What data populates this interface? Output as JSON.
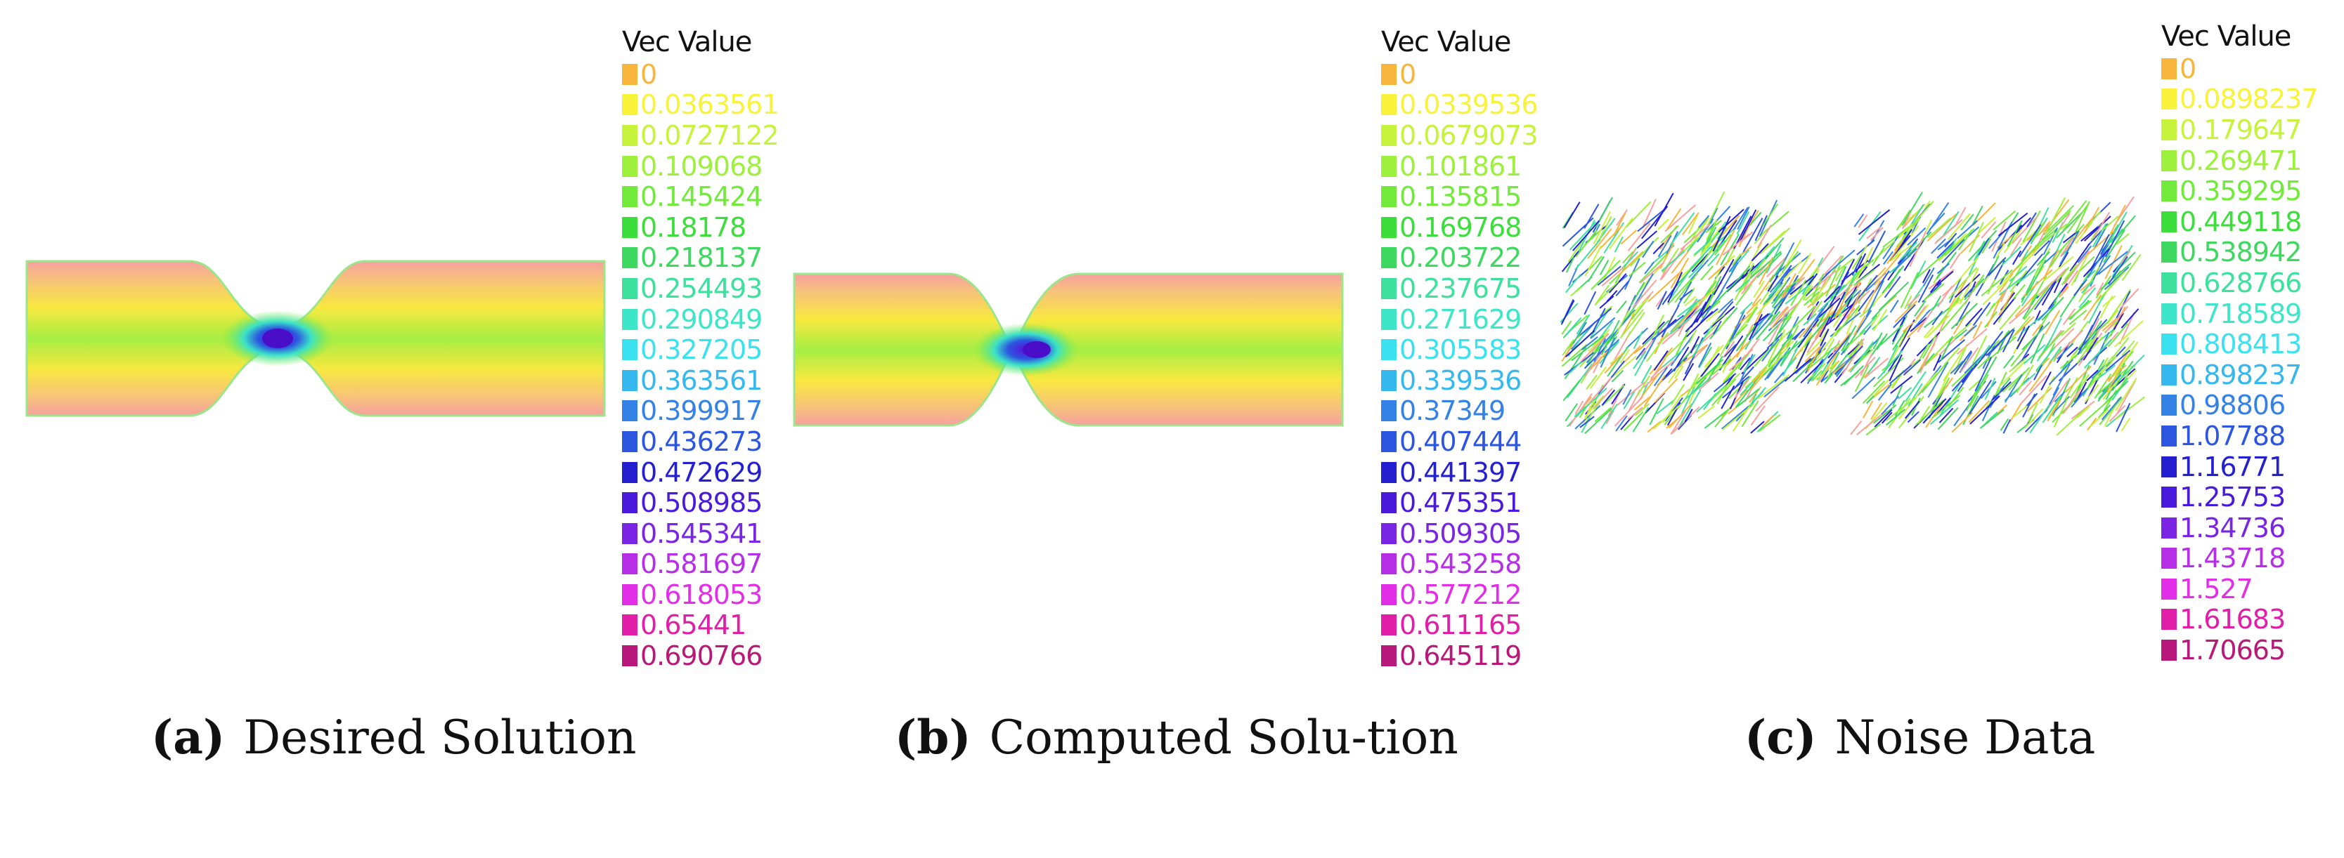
{
  "legend_title": "Vec Value",
  "colors": [
    "#f7b53c",
    "#f8f23a",
    "#c6f33c",
    "#9df03c",
    "#72ea3c",
    "#3cde3c",
    "#3ed860",
    "#3ee09e",
    "#3de6c8",
    "#3ae2f0",
    "#35b8ee",
    "#3482e6",
    "#2c56e0",
    "#2420d0",
    "#4a1adc",
    "#7a24e4",
    "#b62ee6",
    "#e22ee6",
    "#e01ea8",
    "#b8187a"
  ],
  "panels": [
    {
      "id": "a",
      "label": "(a)",
      "caption": "Desired Solution",
      "legend_values": [
        "0",
        "0.0363561",
        "0.0727122",
        "0.109068",
        "0.145424",
        "0.18178",
        "0.218137",
        "0.254493",
        "0.290849",
        "0.327205",
        "0.363561",
        "0.399917",
        "0.436273",
        "0.472629",
        "0.508985",
        "0.545341",
        "0.581697",
        "0.618053",
        "0.65441",
        "0.690766"
      ]
    },
    {
      "id": "b",
      "label": "(b)",
      "caption": "Computed Solu-tion",
      "legend_values": [
        "0",
        "0.0339536",
        "0.0679073",
        "0.101861",
        "0.135815",
        "0.169768",
        "0.203722",
        "0.237675",
        "0.271629",
        "0.305583",
        "0.339536",
        "0.37349",
        "0.407444",
        "0.441397",
        "0.475351",
        "0.509305",
        "0.543258",
        "0.577212",
        "0.611165",
        "0.645119"
      ]
    },
    {
      "id": "c",
      "label": "(c)",
      "caption": "Noise Data",
      "legend_values": [
        "0",
        "0.0898237",
        "0.179647",
        "0.269471",
        "0.359295",
        "0.449118",
        "0.538942",
        "0.628766",
        "0.718589",
        "0.808413",
        "0.898237",
        "0.98806",
        "1.07788",
        "1.16771",
        "1.25753",
        "1.34736",
        "1.43718",
        "1.527",
        "1.61683",
        "1.70665"
      ]
    }
  ]
}
